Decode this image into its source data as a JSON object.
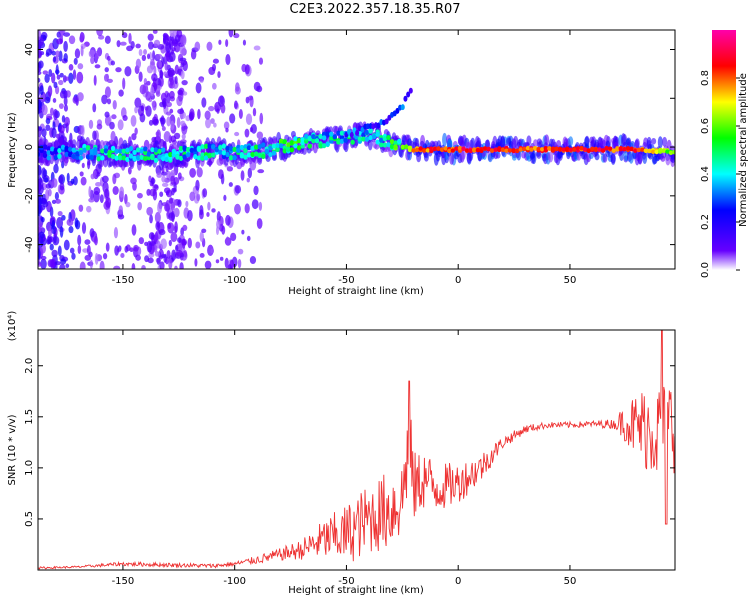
{
  "title": "C2E3.2022.357.18.35.R07",
  "chart_data": [
    {
      "type": "heatmap",
      "title": "",
      "xlabel": "Height of straight line (km)",
      "ylabel": "Frequency (Hz)",
      "xlim": [
        -188,
        97
      ],
      "ylim": [
        -50,
        48
      ],
      "x_ticks": [
        -150,
        -100,
        -50,
        0,
        50
      ],
      "x_tick_labels": [
        "-150",
        "-100",
        "-50",
        "0",
        "50"
      ],
      "y_ticks": [
        -40,
        -20,
        0,
        20,
        40
      ],
      "y_tick_labels": [
        "-40",
        "-20",
        "0",
        "20",
        "40"
      ],
      "colorbar": {
        "label": "Normalized spectral amplitude",
        "range": [
          0,
          1
        ],
        "ticks": [
          0.0,
          0.2,
          0.4,
          0.6,
          0.8
        ],
        "tick_labels": [
          "0.0",
          "0.2",
          "0.4",
          "0.6",
          "0.8"
        ],
        "colormap": [
          "#ffffff",
          "#6600ff",
          "#0000ff",
          "#00ffff",
          "#00ff00",
          "#ffff00",
          "#ff0000",
          "#ff00aa"
        ]
      },
      "ridge": {
        "x": [
          -186,
          -170,
          -150,
          -130,
          -110,
          -90,
          -80,
          -70,
          -60,
          -50,
          -40,
          -30,
          -25,
          -20,
          0,
          20,
          40,
          60,
          80,
          97
        ],
        "freq": [
          -2,
          -2,
          -3,
          -3,
          -2,
          -2,
          0,
          2,
          3,
          4,
          5,
          2,
          0,
          -1,
          -1,
          -1,
          -1,
          -1,
          -1,
          -2
        ],
        "amplitude": [
          0.3,
          0.4,
          0.45,
          0.45,
          0.45,
          0.45,
          0.5,
          0.5,
          0.45,
          0.45,
          0.4,
          0.5,
          0.6,
          0.85,
          0.9,
          0.9,
          0.85,
          0.9,
          0.85,
          0.6
        ]
      },
      "branch": {
        "x": [
          -50,
          -40,
          -30,
          -25,
          -20
        ],
        "freq": [
          5,
          8,
          12,
          17,
          26
        ]
      }
    },
    {
      "type": "line",
      "title": "",
      "xlabel": "Height of straight line (km)",
      "ylabel": "SNR (10 * v/v)",
      "y_scale_label": "(x10⁴)",
      "xlim": [
        -188,
        97
      ],
      "ylim": [
        0,
        2.35
      ],
      "x_ticks": [
        -150,
        -100,
        -50,
        0,
        50
      ],
      "x_tick_labels": [
        "-150",
        "-100",
        "-50",
        "0",
        "50"
      ],
      "y_ticks": [
        0.5,
        1.0,
        1.5,
        2.0
      ],
      "y_tick_labels": [
        "0.5",
        "1.0",
        "1.5",
        "2.0"
      ],
      "series": [
        {
          "color": "#ee3333",
          "envelope_x": [
            -188,
            -170,
            -150,
            -130,
            -110,
            -100,
            -90,
            -80,
            -70,
            -60,
            -50,
            -40,
            -30,
            -25,
            -22,
            -20,
            -15,
            -10,
            0,
            10,
            20,
            30,
            40,
            50,
            60,
            70,
            75,
            80,
            85,
            90,
            97
          ],
          "envelope_y": [
            0.02,
            0.03,
            0.06,
            0.05,
            0.04,
            0.06,
            0.1,
            0.15,
            0.2,
            0.3,
            0.35,
            0.5,
            0.6,
            0.7,
            1.3,
            0.8,
            0.9,
            0.8,
            0.85,
            1.0,
            1.25,
            1.38,
            1.42,
            1.42,
            1.43,
            1.43,
            1.45,
            1.4,
            1.4,
            1.35,
            1.45
          ],
          "noise": [
            0.01,
            0.01,
            0.02,
            0.02,
            0.02,
            0.02,
            0.04,
            0.06,
            0.1,
            0.2,
            0.3,
            0.35,
            0.4,
            0.4,
            0.5,
            0.35,
            0.3,
            0.25,
            0.2,
            0.15,
            0.06,
            0.04,
            0.03,
            0.03,
            0.03,
            0.05,
            0.2,
            0.35,
            0.45,
            0.5,
            0.5
          ]
        }
      ]
    }
  ]
}
